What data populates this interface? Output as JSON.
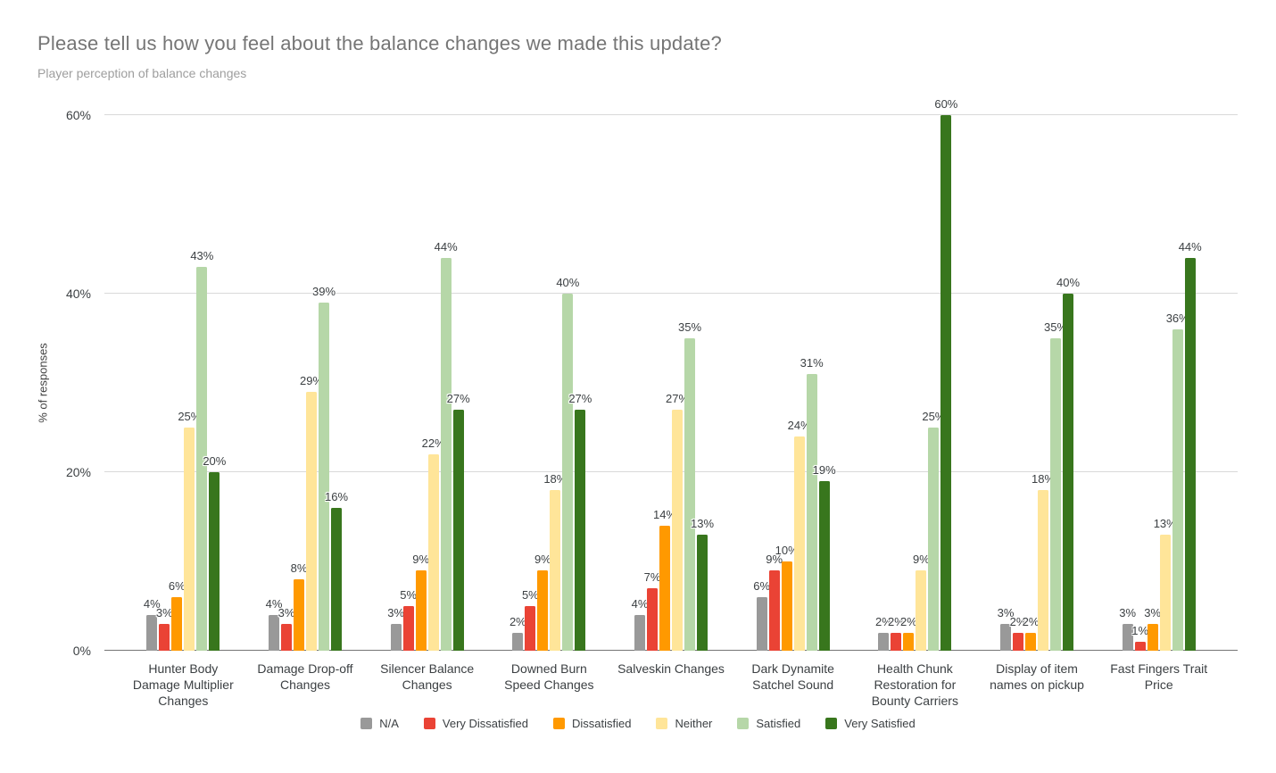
{
  "chart_data": {
    "type": "bar",
    "title": "Please tell us how you feel about the balance changes we made this update?",
    "subtitle": "Player perception of balance changes",
    "xlabel": "",
    "ylabel": "% of responses",
    "ylim": [
      0,
      60
    ],
    "yticks": [
      {
        "value": 0,
        "label": "0%"
      },
      {
        "value": 20,
        "label": "20%"
      },
      {
        "value": 40,
        "label": "40%"
      },
      {
        "value": 60,
        "label": "60%"
      }
    ],
    "grid": "horizontal",
    "legend_position": "bottom",
    "data_labels": "value percent above each bar",
    "categories": [
      "Hunter Body Damage Multiplier Changes",
      "Damage Drop-off Changes",
      "Silencer Balance Changes",
      "Downed Burn Speed Changes",
      "Salveskin Changes",
      "Dark Dynamite Satchel Sound",
      "Health Chunk Restoration for Bounty Carriers",
      "Display of item names on pickup",
      "Fast Fingers Trait Price"
    ],
    "category_label_lines": [
      [
        "Hunter Body",
        "Damage Multiplier",
        "Changes"
      ],
      [
        "Damage Drop-off",
        "Changes"
      ],
      [
        "Silencer Balance",
        "Changes"
      ],
      [
        "Downed Burn",
        "Speed Changes"
      ],
      [
        "Salveskin Changes"
      ],
      [
        "Dark Dynamite",
        "Satchel Sound"
      ],
      [
        "Health Chunk",
        "Restoration for",
        "Bounty Carriers"
      ],
      [
        "Display of item",
        "names on pickup"
      ],
      [
        "Fast Fingers Trait",
        "Price"
      ]
    ],
    "series": [
      {
        "name": "N/A",
        "color": "#999999",
        "values": [
          4,
          4,
          3,
          2,
          4,
          6,
          2,
          3,
          3
        ]
      },
      {
        "name": "Very Dissatisfied",
        "color": "#EA4335",
        "values": [
          3,
          3,
          5,
          5,
          7,
          9,
          2,
          2,
          1
        ]
      },
      {
        "name": "Dissatisfied",
        "color": "#FF9900",
        "values": [
          6,
          8,
          9,
          9,
          14,
          10,
          2,
          2,
          3
        ]
      },
      {
        "name": "Neither",
        "color": "#FFE599",
        "values": [
          25,
          29,
          22,
          18,
          27,
          24,
          9,
          18,
          13
        ]
      },
      {
        "name": "Satisfied",
        "color": "#B6D7A8",
        "values": [
          43,
          39,
          44,
          40,
          35,
          31,
          25,
          35,
          36
        ]
      },
      {
        "name": "Very Satisfied",
        "color": "#38761D",
        "values": [
          20,
          16,
          27,
          27,
          13,
          19,
          60,
          40,
          44
        ]
      }
    ],
    "label_suffix": "%"
  },
  "colors": {
    "background": "#ffffff",
    "title_text": "#757575",
    "subtitle_text": "#9e9e9e",
    "axis_line": "#757575",
    "gridline": "#d9d9d9",
    "tick_text": "#3c4043",
    "category_text": "#3c4043",
    "data_label_text": "#3c4043",
    "legend_text": "#3c4043"
  }
}
